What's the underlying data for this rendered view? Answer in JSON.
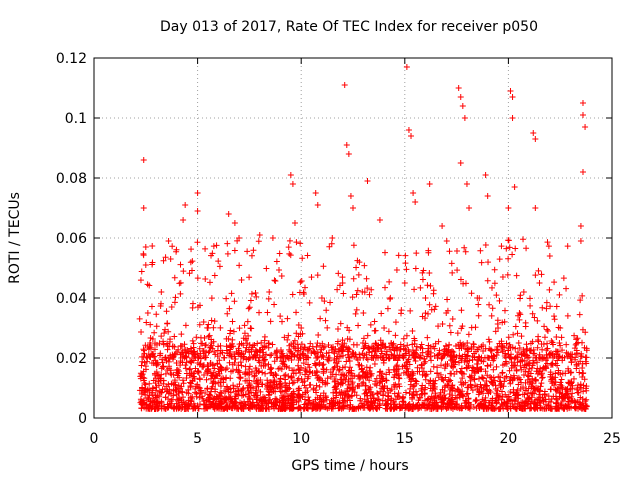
{
  "chart_data": {
    "type": "scatter",
    "title": "Day 013 of 2017, Rate Of TEC Index for receiver p050",
    "xlabel": "GPS time / hours",
    "ylabel": "ROTI / TECUs",
    "xlim": [
      0,
      25
    ],
    "ylim": [
      0,
      0.12
    ],
    "x_ticks": [
      0,
      5,
      10,
      15,
      20,
      25
    ],
    "x_tick_labels": [
      "0",
      "5",
      "10",
      "15",
      "20",
      "25"
    ],
    "y_ticks": [
      0,
      0.02,
      0.04,
      0.06,
      0.08,
      0.1,
      0.12
    ],
    "y_tick_labels": [
      "0",
      "0.02",
      "0.04",
      "0.06",
      "0.08",
      "0.1",
      "0.12"
    ],
    "grid": true,
    "marker": "+",
    "color": "#ff0000",
    "series": [
      {
        "points_sample": [
          [
            2.4,
            0.086
          ],
          [
            2.4,
            0.07
          ],
          [
            2.5,
            0.057
          ],
          [
            2.5,
            0.051
          ],
          [
            2.6,
            0.035
          ],
          [
            2.7,
            0.025
          ],
          [
            3.6,
            0.059
          ],
          [
            3.7,
            0.053
          ],
          [
            4.3,
            0.066
          ],
          [
            4.4,
            0.071
          ],
          [
            5.0,
            0.075
          ],
          [
            5.0,
            0.069
          ],
          [
            6.5,
            0.068
          ],
          [
            6.8,
            0.065
          ],
          [
            7.0,
            0.06
          ],
          [
            8.0,
            0.061
          ],
          [
            9.5,
            0.081
          ],
          [
            9.6,
            0.078
          ],
          [
            9.7,
            0.065
          ],
          [
            10.7,
            0.075
          ],
          [
            10.8,
            0.071
          ],
          [
            11.5,
            0.06
          ],
          [
            12.1,
            0.111
          ],
          [
            12.2,
            0.091
          ],
          [
            12.3,
            0.088
          ],
          [
            12.4,
            0.074
          ],
          [
            12.5,
            0.07
          ],
          [
            13.2,
            0.079
          ],
          [
            13.8,
            0.066
          ],
          [
            15.1,
            0.117
          ],
          [
            15.2,
            0.096
          ],
          [
            15.3,
            0.094
          ],
          [
            15.4,
            0.075
          ],
          [
            15.5,
            0.072
          ],
          [
            16.2,
            0.078
          ],
          [
            16.8,
            0.064
          ],
          [
            17.6,
            0.11
          ],
          [
            17.7,
            0.107
          ],
          [
            17.8,
            0.104
          ],
          [
            17.9,
            0.1
          ],
          [
            17.7,
            0.085
          ],
          [
            18.0,
            0.078
          ],
          [
            18.1,
            0.07
          ],
          [
            18.9,
            0.081
          ],
          [
            19.0,
            0.074
          ],
          [
            20.1,
            0.109
          ],
          [
            20.2,
            0.107
          ],
          [
            20.2,
            0.1
          ],
          [
            20.3,
            0.077
          ],
          [
            20.0,
            0.07
          ],
          [
            21.2,
            0.095
          ],
          [
            21.3,
            0.093
          ],
          [
            21.3,
            0.07
          ],
          [
            22.0,
            0.054
          ],
          [
            23.6,
            0.105
          ],
          [
            23.6,
            0.101
          ],
          [
            23.7,
            0.097
          ],
          [
            23.6,
            0.082
          ],
          [
            23.5,
            0.064
          ],
          [
            23.5,
            0.059
          ],
          [
            3.0,
            0.018
          ],
          [
            4.0,
            0.022
          ],
          [
            5.5,
            0.03
          ],
          [
            7.5,
            0.015
          ],
          [
            8.5,
            0.012
          ],
          [
            9.0,
            0.013
          ],
          [
            10.0,
            0.03
          ],
          [
            11.0,
            0.04
          ],
          [
            12.0,
            0.045
          ],
          [
            13.0,
            0.035
          ],
          [
            14.0,
            0.03
          ],
          [
            15.0,
            0.045
          ],
          [
            16.0,
            0.04
          ],
          [
            17.0,
            0.035
          ],
          [
            18.5,
            0.04
          ],
          [
            19.5,
            0.03
          ],
          [
            20.5,
            0.025
          ],
          [
            21.5,
            0.045
          ],
          [
            22.5,
            0.03
          ],
          [
            23.0,
            0.02
          ]
        ],
        "dense_band": {
          "x_range": [
            2.2,
            23.8
          ],
          "y_range": [
            0.003,
            0.025
          ],
          "description_free": true
        }
      }
    ]
  }
}
